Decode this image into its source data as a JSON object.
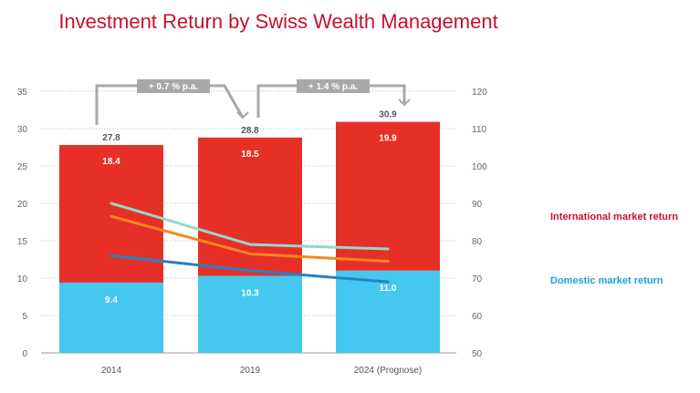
{
  "chart_data": {
    "type": "bar",
    "title": "Investment Return by Swiss Wealth Management",
    "categories": [
      "2014",
      "2019",
      "2024 (Prognose)"
    ],
    "stacked": true,
    "series": [
      {
        "name": "Domestic market return",
        "values": [
          9.4,
          10.3,
          11.0
        ]
      },
      {
        "name": "International market return",
        "values": [
          18.4,
          18.5,
          19.9
        ]
      }
    ],
    "totals": [
      "27.8",
      "28.8",
      "30.9"
    ],
    "domestic_labels": [
      "9.4",
      "10.3",
      "11.0"
    ],
    "international_labels": [
      "18.4",
      "18.5",
      "19.9"
    ],
    "ylim": [
      0,
      35
    ],
    "yticks": [
      "0",
      "5",
      "10",
      "15",
      "20",
      "25",
      "30",
      "35"
    ],
    "y2lim": [
      50,
      120
    ],
    "y2ticks": [
      "50",
      "60",
      "70",
      "80",
      "90",
      "100",
      "110",
      "120"
    ],
    "lines": [
      {
        "color": "#93d8c9",
        "values": [
          90,
          79,
          77.8
        ]
      },
      {
        "color": "#f6871f",
        "values": [
          86.5,
          76.5,
          74.5
        ]
      },
      {
        "color": "#2b7fbf",
        "values": [
          76,
          72,
          69
        ]
      }
    ],
    "growth_annotations": [
      "+ 0.7 % p.a.",
      "+ 1.4 % p.a."
    ],
    "grid": "dotted horizontal",
    "colors": {
      "domestic": "#45c8ef",
      "international": "#e63027",
      "title": "#c8102e",
      "annotation": "#a8a8a8"
    }
  }
}
